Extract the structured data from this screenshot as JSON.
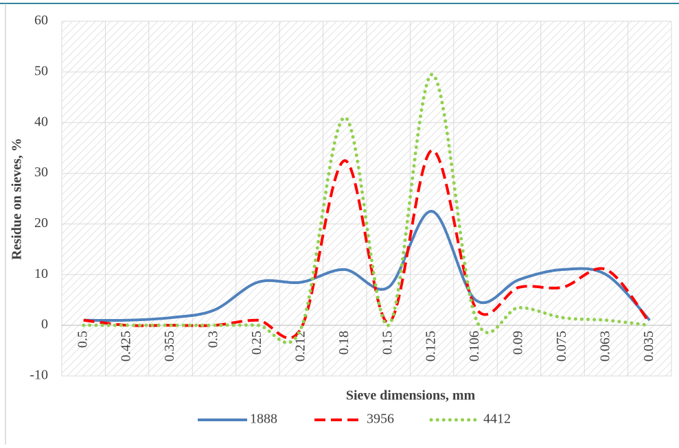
{
  "chart_data": {
    "type": "line",
    "x_label": "Sieve dimensions, mm",
    "y_label": "Residue on sieves, %",
    "categories": [
      "0.5",
      "0.425",
      "0.355",
      "0.3",
      "0.25",
      "0.212",
      "0.18",
      "0.15",
      "0.125",
      "0.106",
      "0.09",
      "0.075",
      "0.063",
      "0.035"
    ],
    "series": [
      {
        "name": "1888",
        "color": "#4f81bd",
        "dash": "solid",
        "values": [
          1,
          1,
          1.5,
          3,
          8.5,
          8.5,
          11,
          7.5,
          22.5,
          5,
          9,
          11,
          10,
          1
        ]
      },
      {
        "name": "3956",
        "color": "#ff0000",
        "dash": "dashed",
        "values": [
          1,
          0,
          0,
          0,
          1,
          -0.5,
          32.5,
          0.5,
          34.5,
          3.5,
          7.5,
          7.5,
          11,
          0.5
        ]
      },
      {
        "name": "4412",
        "color": "#92d050",
        "dash": "dotted",
        "values": [
          0,
          0,
          0,
          0,
          0,
          -0.5,
          41,
          0,
          49.5,
          1.5,
          3.5,
          1.5,
          1,
          0
        ]
      }
    ],
    "ylim": [
      -10,
      60
    ],
    "yticks": [
      -10,
      0,
      10,
      20,
      30,
      40,
      50,
      60
    ],
    "grid": true,
    "smooth": true,
    "legend": "bottom"
  }
}
